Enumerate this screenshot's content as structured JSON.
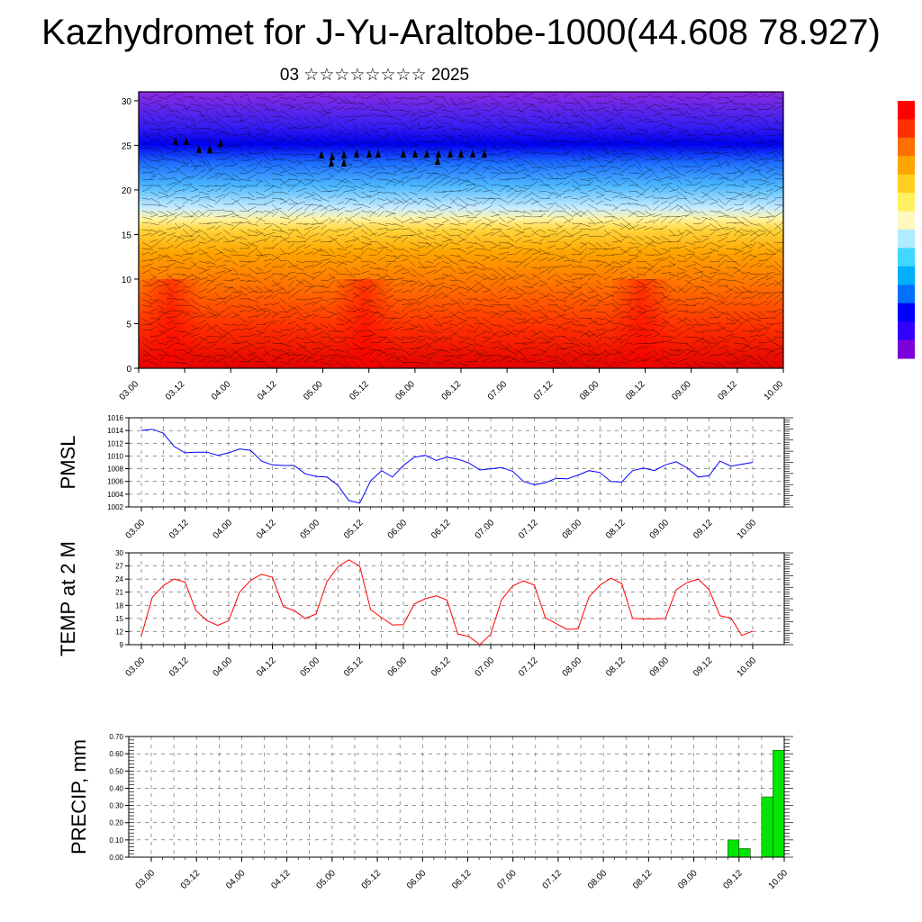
{
  "title": "Kazhydromet for J-Yu-Araltobe-1000(44.608 78.927)",
  "subtitle": "03 ☆☆☆☆☆☆☆☆ 2025",
  "colors": {
    "pmsl_line": "#0000ff",
    "temp_line": "#ff0000",
    "precip_bar": "#00e600"
  },
  "chart_data": [
    {
      "type": "heatmap",
      "name": "cross-section",
      "x_ticks": [
        "03.00",
        "03.12",
        "04.00",
        "04.12",
        "05.00",
        "05.12",
        "06.00",
        "06.12",
        "07.00",
        "07.12",
        "08.00",
        "08.12",
        "09.00",
        "09.12",
        "10.00"
      ],
      "y_ticks": [
        0,
        5,
        10,
        15,
        20,
        25,
        30
      ],
      "ylim": [
        0,
        31
      ],
      "overlay": "wind vectors and barbs",
      "colorbar": [
        "#7b00d9",
        "#3300ff",
        "#0000ff",
        "#0070ff",
        "#00b0ff",
        "#40d8ff",
        "#b0ecff",
        "#fff8c0",
        "#fff060",
        "#ffd020",
        "#ffa500",
        "#ff7000",
        "#ff3000",
        "#ff0000"
      ]
    },
    {
      "type": "line",
      "name": "pmsl",
      "ylabel": "PMSL",
      "ylim": [
        1002,
        1016
      ],
      "y_ticks": [
        1002,
        1004,
        1006,
        1008,
        1010,
        1012,
        1014,
        1016
      ],
      "x_ticks": [
        "03.00",
        "03.12",
        "04.00",
        "04.12",
        "05.00",
        "05.12",
        "06.00",
        "06.12",
        "07.00",
        "07.12",
        "08.00",
        "08.12",
        "09.00",
        "09.12",
        "10.00"
      ],
      "x_hours": [
        0,
        3,
        6,
        9,
        12,
        15,
        18,
        21,
        24,
        27,
        30,
        33,
        36,
        39,
        42,
        45,
        48,
        51,
        54,
        57,
        60,
        63,
        66,
        69,
        72,
        75,
        78,
        81,
        84,
        87,
        90,
        93,
        96,
        99,
        102,
        105,
        108,
        111,
        114,
        117,
        120,
        123,
        126,
        129,
        132,
        135,
        138,
        141,
        144,
        147,
        150,
        153,
        156,
        159,
        162,
        165,
        168
      ],
      "values": [
        1014,
        1014.2,
        1013.6,
        1011.5,
        1010.5,
        1010.6,
        1010.6,
        1010.1,
        1010.5,
        1011.1,
        1010.9,
        1009.2,
        1008.6,
        1008.5,
        1008.5,
        1007.2,
        1006.8,
        1006.7,
        1005.4,
        1003,
        1002.6,
        1006.1,
        1007.7,
        1006.7,
        1008.5,
        1009.8,
        1010.1,
        1009.3,
        1009.8,
        1009.5,
        1008.9,
        1007.8,
        1008,
        1008.2,
        1007.6,
        1006,
        1005.5,
        1005.8,
        1006.5,
        1006.4,
        1007,
        1007.7,
        1007.4,
        1006,
        1005.9,
        1007.7,
        1008.1,
        1007.7,
        1008.6,
        1009.1,
        1008.1,
        1006.7,
        1006.9,
        1009.2,
        1008.4,
        1008.7,
        1009
      ]
    },
    {
      "type": "line",
      "name": "temp2m",
      "ylabel": "TEMP at 2 M",
      "ylim": [
        9,
        30
      ],
      "y_ticks": [
        9,
        12,
        15,
        18,
        21,
        24,
        27,
        30
      ],
      "x_ticks": [
        "03.00",
        "03.12",
        "04.00",
        "04.12",
        "05.00",
        "05.12",
        "06.00",
        "06.12",
        "07.00",
        "07.12",
        "08.00",
        "08.12",
        "09.00",
        "09.12",
        "10.00"
      ],
      "x_hours": [
        0,
        3,
        6,
        9,
        12,
        15,
        18,
        21,
        24,
        27,
        30,
        33,
        36,
        39,
        42,
        45,
        48,
        51,
        54,
        57,
        60,
        63,
        66,
        69,
        72,
        75,
        78,
        81,
        84,
        87,
        90,
        93,
        96,
        99,
        102,
        105,
        108,
        111,
        114,
        117,
        120,
        123,
        126,
        129,
        132,
        135,
        138,
        141,
        144,
        147,
        150,
        153,
        156,
        159,
        162,
        165,
        168
      ],
      "values": [
        11,
        19.8,
        22.5,
        24,
        23.3,
        16.8,
        14.5,
        13.4,
        14.5,
        21,
        23.7,
        25.1,
        24.4,
        17.7,
        16.8,
        15,
        16,
        23.4,
        26.8,
        28.4,
        27,
        17,
        15.2,
        13.5,
        13.6,
        18.3,
        19.5,
        20.2,
        19.2,
        11.4,
        10.9,
        9,
        11.4,
        19.3,
        22.4,
        23.6,
        22.6,
        15.2,
        13.8,
        12.5,
        12.6,
        19.9,
        22.6,
        24.2,
        23,
        15,
        14.9,
        14.9,
        15,
        21.6,
        23.2,
        24,
        21.6,
        15.6,
        15.1,
        11.1,
        12.1
      ]
    },
    {
      "type": "bar",
      "name": "precip",
      "ylabel": "PRECIP, mm",
      "ylim": [
        0,
        0.7
      ],
      "y_ticks": [
        "0.00",
        "0.10",
        "0.20",
        "0.30",
        "0.40",
        "0.50",
        "0.60",
        "0.70"
      ],
      "x_ticks": [
        "03.00",
        "03.12",
        "04.00",
        "04.12",
        "05.00",
        "05.12",
        "06.00",
        "06.12",
        "07.00",
        "07.12",
        "08.00",
        "08.12",
        "09.00",
        "09.12",
        "10.00"
      ],
      "bars": [
        {
          "x_hours": 156,
          "value": 0.1
        },
        {
          "x_hours": 159,
          "value": 0.05
        },
        {
          "x_hours": 165,
          "value": 0.35
        },
        {
          "x_hours": 168,
          "value": 0.62
        }
      ]
    }
  ]
}
